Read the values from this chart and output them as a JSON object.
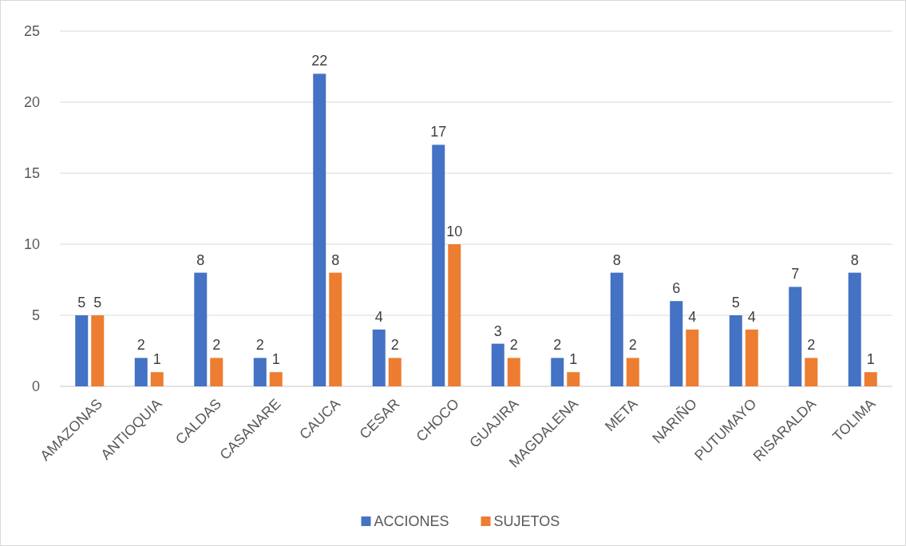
{
  "chart_data": {
    "type": "bar",
    "categories": [
      "AMAZONAS",
      "ANTIOQUIA",
      "CALDAS",
      "CASANARE",
      "CAUCA",
      "CESAR",
      "CHOCO",
      "GUAJIRA",
      "MAGDALENA",
      "META",
      "NARIÑO",
      "PUTUMAYO",
      "RISARALDA",
      "TOLIMA"
    ],
    "series": [
      {
        "name": "ACCIONES",
        "color": "#4472c4",
        "values": [
          5,
          2,
          8,
          2,
          22,
          4,
          17,
          3,
          2,
          8,
          6,
          5,
          7,
          8
        ]
      },
      {
        "name": "SUJETOS",
        "color": "#ed7d31",
        "values": [
          5,
          1,
          2,
          1,
          8,
          2,
          10,
          2,
          1,
          2,
          4,
          4,
          2,
          1
        ]
      }
    ],
    "ylim": [
      0,
      25
    ],
    "yticks": [
      0,
      5,
      10,
      15,
      20,
      25
    ],
    "grid": "y",
    "legend": "bottom",
    "data_labels": true
  }
}
